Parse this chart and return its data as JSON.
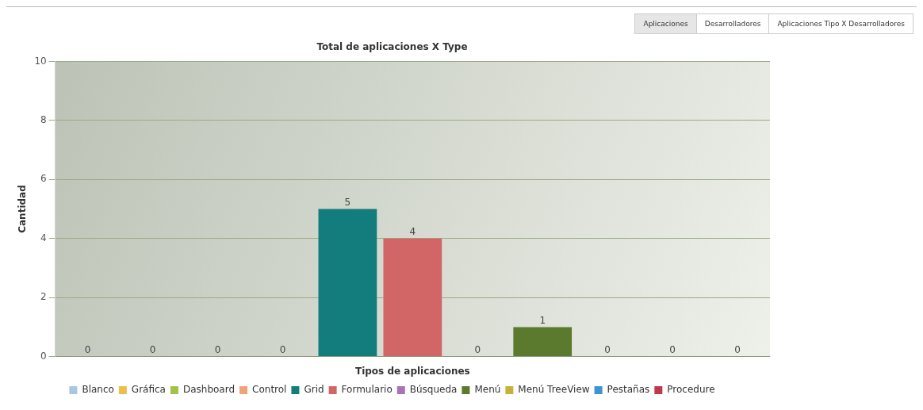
{
  "chart_data": {
    "type": "bar",
    "title": "Total de aplicaciones X Type",
    "xlabel": "Tipos de aplicaciones",
    "ylabel": "Cantidad",
    "annotations": [
      "Aplicaciones",
      "Desarrolladores",
      "Aplicaciones Tipo X Desarrolladores"
    ],
    "categories": [
      null,
      null,
      null,
      null,
      null,
      null,
      null,
      null,
      null,
      null,
      null
    ],
    "series": [
      {
        "name": "Blanco",
        "color": "#a9c6e6",
        "values": [
          0,
          null,
          null,
          null,
          null,
          null,
          null,
          null,
          null,
          null,
          null
        ]
      },
      {
        "name": "Gráfica",
        "color": "#e8c04a",
        "values": [
          null,
          0,
          null,
          null,
          null,
          null,
          null,
          null,
          null,
          null,
          null
        ]
      },
      {
        "name": "Dashboard",
        "color": "#a3c24a",
        "values": [
          null,
          null,
          0,
          null,
          null,
          null,
          null,
          null,
          null,
          null,
          null
        ]
      },
      {
        "name": "Control",
        "color": "#f0a27a",
        "values": [
          null,
          null,
          null,
          0,
          null,
          null,
          null,
          null,
          null,
          null,
          null
        ]
      },
      {
        "name": "Grid",
        "color": "#137c7c",
        "values": [
          null,
          null,
          null,
          null,
          5,
          null,
          null,
          null,
          null,
          null,
          null
        ]
      },
      {
        "name": "Formulario",
        "color": "#d26565",
        "values": [
          null,
          null,
          null,
          null,
          null,
          4,
          null,
          null,
          null,
          null,
          null
        ]
      },
      {
        "name": "Búsqueda",
        "color": "#a675b5",
        "values": [
          null,
          null,
          null,
          null,
          null,
          null,
          0,
          null,
          null,
          null,
          null
        ]
      },
      {
        "name": "Menú",
        "color": "#5b7a2e",
        "values": [
          null,
          null,
          null,
          null,
          null,
          null,
          null,
          1,
          null,
          null,
          null
        ]
      },
      {
        "name": "Menú TreeView",
        "color": "#c4b33a",
        "values": [
          null,
          null,
          null,
          null,
          null,
          null,
          null,
          null,
          0,
          null,
          null
        ]
      },
      {
        "name": "Pestañas",
        "color": "#3c94d2",
        "values": [
          null,
          null,
          null,
          null,
          null,
          null,
          null,
          null,
          null,
          0,
          null
        ]
      },
      {
        "name": "Procedure",
        "color": "#c0394a",
        "values": [
          null,
          null,
          null,
          null,
          null,
          null,
          null,
          null,
          null,
          null,
          0
        ]
      }
    ],
    "ylim": [
      0,
      10
    ],
    "yticks": [
      0,
      2,
      4,
      6,
      8,
      10
    ],
    "grid": "y",
    "legend": "bottom",
    "data_labels": true,
    "tick_labels": "y"
  }
}
